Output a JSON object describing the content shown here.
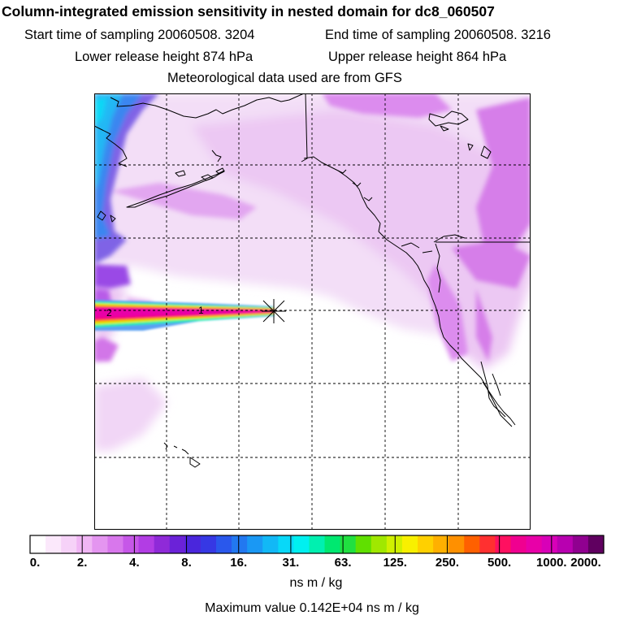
{
  "header": {
    "title": "Column-integrated emission sensitivity in nested domain for dc8_060507",
    "start_time": "Start time of sampling 20060508.  3204",
    "end_time": "End time of sampling 20060508.  3216",
    "lower_height": "Lower release height  874 hPa",
    "upper_height": "Upper release height  864 hPa",
    "met_data": "Meteorological data used are from GFS"
  },
  "map": {
    "release_marks": [
      "2",
      "1"
    ],
    "colors": {
      "coast": "#000000",
      "grid": "#000000",
      "release_marker": "#000000"
    }
  },
  "colorbar": {
    "tick_labels": [
      "0.",
      "2.",
      "4.",
      "8.",
      "16.",
      "31.",
      "63.",
      "125.",
      "250.",
      "500.",
      "1000.",
      "2000."
    ],
    "units": "ns m / kg",
    "colors": [
      "#ffffff",
      "#fbe8fb",
      "#f6d2f8",
      "#f0b6f4",
      "#e495f0",
      "#d877ec",
      "#c657e8",
      "#b23de4",
      "#8f2ad8",
      "#6b22d8",
      "#4a26dc",
      "#3638e4",
      "#2a58ec",
      "#2278f0",
      "#1a98f4",
      "#12b8f6",
      "#08d8f8",
      "#00f0f0",
      "#00f0b0",
      "#00e870",
      "#20e040",
      "#60e000",
      "#a0e800",
      "#d0f000",
      "#f8f000",
      "#ffd000",
      "#ffb000",
      "#ff9000",
      "#ff6000",
      "#ff3030",
      "#ff1060",
      "#f00090",
      "#e800a8",
      "#d800b8",
      "#b800b0",
      "#900090",
      "#600060"
    ],
    "major_segments": 11,
    "minor_per_major": 3
  },
  "footer": {
    "max_value": "Maximum value  0.142E+04 ns m / kg"
  }
}
